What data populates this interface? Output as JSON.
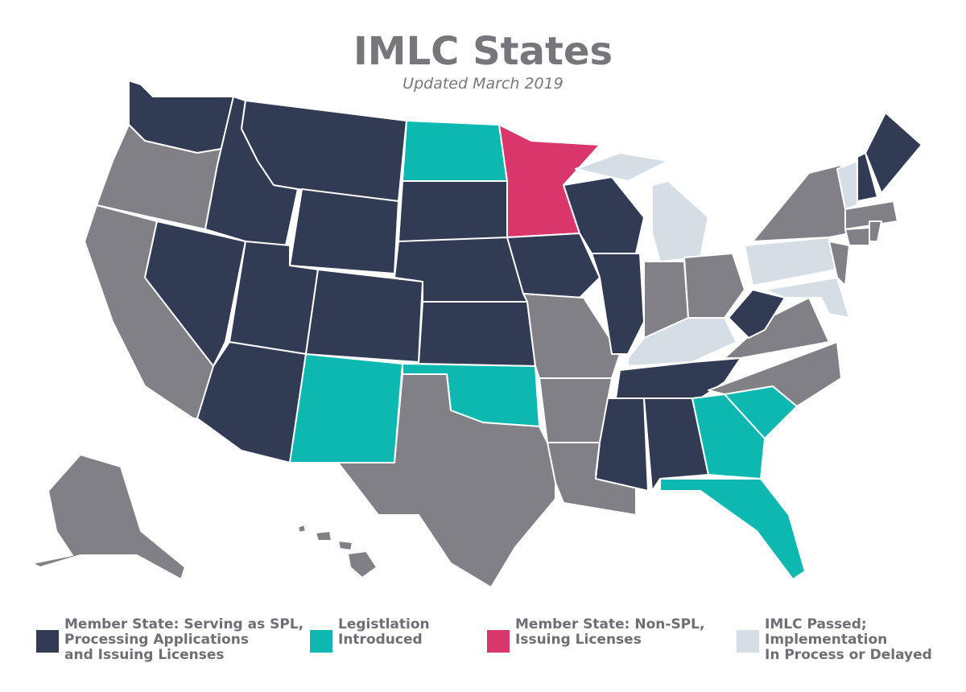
{
  "header": {
    "title": "IMLC States",
    "subtitle": "Updated March 2019"
  },
  "legend": [
    {
      "color": "#323b54",
      "lines": [
        "Member State: Serving as SPL,",
        "Processing Applications",
        "and Issuing Licenses"
      ]
    },
    {
      "color": "#0db8b0",
      "lines": [
        "Legistlation",
        "Introduced"
      ]
    },
    {
      "color": "#d9376b",
      "lines": [
        "Member State: Non-SPL,",
        "Issuing Licenses"
      ]
    },
    {
      "color": "#d5dee5",
      "lines": [
        "IMLC Passed;",
        "Implementation",
        "In Process or Delayed"
      ]
    }
  ],
  "other_color": "#818086"
}
